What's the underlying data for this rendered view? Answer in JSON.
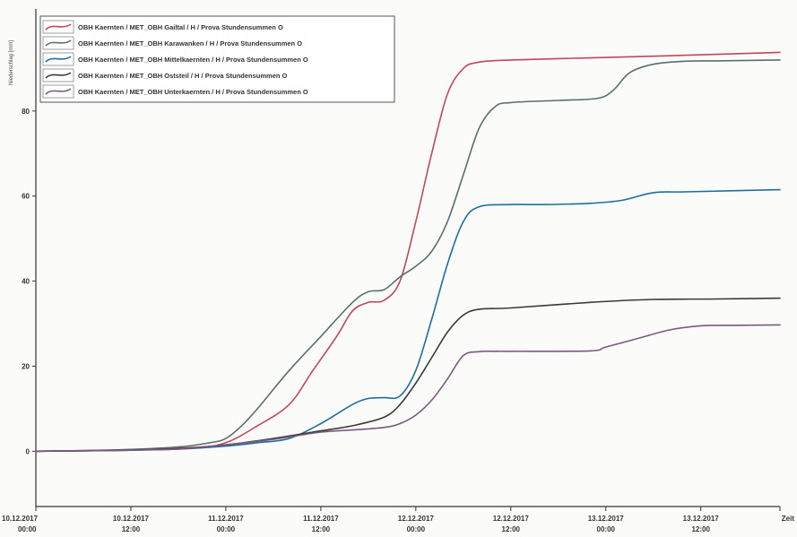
{
  "chart_data": {
    "type": "line",
    "title": "",
    "xlabel": "",
    "ylabel": "Niederschlag [mm]",
    "x_ticks": [
      {
        "value": 0,
        "label1": "10.12.2017",
        "label2": "00:00"
      },
      {
        "value": 12,
        "label1": "10.12.2017",
        "label2": "12:00"
      },
      {
        "value": 24,
        "label1": "11.12.2017",
        "label2": "00:00"
      },
      {
        "value": 36,
        "label1": "11.12.2017",
        "label2": "12:00"
      },
      {
        "value": 48,
        "label1": "12.12.2017",
        "label2": "00:00"
      },
      {
        "value": 60,
        "label1": "12.12.2017",
        "label2": "12:00"
      },
      {
        "value": 72,
        "label1": "13.12.2017",
        "label2": "00:00"
      },
      {
        "value": 84,
        "label1": "13.12.2017",
        "label2": "12:00"
      },
      {
        "value": 94,
        "label1": "Zeit",
        "label2": ""
      }
    ],
    "y_ticks": [
      0,
      20,
      40,
      60,
      80
    ],
    "xlim": [
      0,
      94
    ],
    "ylim": [
      -13,
      104
    ],
    "legend_position": "top-left",
    "grid": false,
    "series": [
      {
        "name": "OBH Kaernten / MET_OBH Gailtal / H / Prova Stundensummen O",
        "color": "#c0485a",
        "x": [
          0,
          10,
          20,
          24,
          28,
          32,
          35,
          38,
          40,
          42,
          44,
          46,
          48,
          50,
          52,
          54,
          56,
          60,
          70,
          80,
          94
        ],
        "y": [
          0,
          0.3,
          0.9,
          2,
          6,
          11,
          19,
          27,
          33,
          35,
          35.5,
          40,
          54,
          70,
          84,
          90,
          91.5,
          92,
          92.5,
          93,
          93.8
        ]
      },
      {
        "name": "OBH Kaernten / MET_OBH Karawanken / H / Prova Stundensummen O",
        "color": "#5a6e6e",
        "x": [
          0,
          10,
          18,
          22,
          24,
          26,
          28,
          32,
          36,
          40,
          42,
          44,
          46,
          48,
          50,
          52,
          54,
          56,
          58,
          60,
          66,
          71,
          73,
          75,
          78,
          82,
          86,
          94
        ],
        "y": [
          0,
          0.3,
          1,
          2,
          3,
          6,
          10,
          19,
          27,
          35,
          37.5,
          38,
          41,
          43.5,
          47,
          54,
          65,
          76,
          81,
          82,
          82.5,
          83,
          85,
          89,
          91,
          91.7,
          91.8,
          92
        ]
      },
      {
        "name": "OBH Kaernten / MET_OBH Mittelkaernten / H / Prova Stundensummen O",
        "color": "#1e6e9e",
        "x": [
          0,
          10,
          18,
          24,
          28,
          32,
          36,
          40,
          42,
          44,
          46,
          48,
          50,
          52,
          54,
          56,
          60,
          64,
          70,
          74,
          78,
          82,
          94
        ],
        "y": [
          0,
          0.2,
          0.5,
          1.2,
          2,
          3,
          6.5,
          11,
          12.4,
          12.6,
          13,
          19,
          31,
          44,
          54,
          57.5,
          58,
          58,
          58.3,
          59,
          60.8,
          61,
          61.5
        ]
      },
      {
        "name": "OBH Kaernten / MET_OBH Oststeil / H / Prova Stundensummen O",
        "color": "#3a3a3a",
        "x": [
          0,
          10,
          18,
          24,
          30,
          36,
          40,
          44,
          46,
          48,
          50,
          52,
          54,
          56,
          60,
          70,
          78,
          86,
          94
        ],
        "y": [
          0,
          0.2,
          0.6,
          1.5,
          3,
          4.8,
          6,
          8,
          11,
          16,
          22,
          28,
          32,
          33.4,
          33.7,
          35,
          35.7,
          35.8,
          36
        ]
      },
      {
        "name": "OBH Kaernten / MET_OBH Unterkaernten / H / Prova Stundensummen O",
        "color": "#7a5a7e",
        "x": [
          0,
          10,
          18,
          24,
          30,
          36,
          40,
          44,
          46,
          48,
          50,
          52,
          54,
          56,
          58,
          60,
          70,
          72,
          76,
          80,
          84,
          88,
          94
        ],
        "y": [
          0,
          0.2,
          0.5,
          1.5,
          2.8,
          4.5,
          5,
          5.6,
          6.5,
          8.5,
          12,
          17,
          22.5,
          23.4,
          23.5,
          23.5,
          23.6,
          24.5,
          26.5,
          28.5,
          29.5,
          29.6,
          29.7
        ]
      }
    ]
  }
}
